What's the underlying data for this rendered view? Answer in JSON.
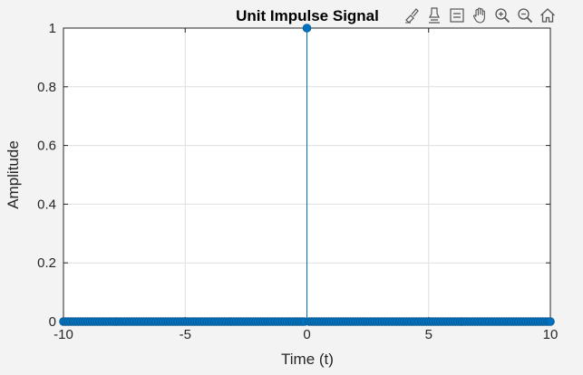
{
  "chart_data": {
    "type": "stem",
    "title": "Unit Impulse Signal",
    "xlabel": "Time (t)",
    "ylabel": "Amplitude",
    "xlim": [
      -10,
      10
    ],
    "ylim": [
      0,
      1
    ],
    "x_ticks": [
      -10,
      -5,
      0,
      5,
      10
    ],
    "x_tick_labels": [
      "-10",
      "-5",
      "0",
      "5",
      "10"
    ],
    "y_ticks": [
      0,
      0.2,
      0.4,
      0.6,
      0.8,
      1
    ],
    "y_tick_labels": [
      "0",
      "0.2",
      "0.4",
      "0.6",
      "0.8",
      "1"
    ],
    "grid": true,
    "series": [
      {
        "x": [
          -10,
          -9.9,
          -9.8,
          -9.7,
          -9.6,
          -9.5,
          -9.4,
          -9.3,
          -9.2,
          -9.1,
          -9,
          -8.9,
          -8.8,
          -8.7,
          -8.6,
          -8.5,
          -8.4,
          -8.3,
          -8.2,
          -8.1,
          -8,
          -7.9,
          -7.8,
          -7.7,
          -7.6,
          -7.5,
          -7.4,
          -7.3,
          -7.2,
          -7.1,
          -7,
          -6.9,
          -6.8,
          -6.7,
          -6.6,
          -6.5,
          -6.4,
          -6.3,
          -6.2,
          -6.1,
          -6,
          -5.9,
          -5.8,
          -5.7,
          -5.6,
          -5.5,
          -5.4,
          -5.3,
          -5.2,
          -5.1,
          -5,
          -4.9,
          -4.8,
          -4.7,
          -4.6,
          -4.5,
          -4.4,
          -4.3,
          -4.2,
          -4.1,
          -4,
          -3.9,
          -3.8,
          -3.7,
          -3.6,
          -3.5,
          -3.4,
          -3.3,
          -3.2,
          -3.1,
          -3,
          -2.9,
          -2.8,
          -2.7,
          -2.6,
          -2.5,
          -2.4,
          -2.3,
          -2.2,
          -2.1,
          -2,
          -1.9,
          -1.8,
          -1.7,
          -1.6,
          -1.5,
          -1.4,
          -1.3,
          -1.2,
          -1.1,
          -1,
          -0.9,
          -0.8,
          -0.7,
          -0.6,
          -0.5,
          -0.4,
          -0.3,
          -0.2,
          -0.1,
          0,
          0.1,
          0.2,
          0.3,
          0.4,
          0.5,
          0.6,
          0.7,
          0.8,
          0.9,
          1,
          1.1,
          1.2,
          1.3,
          1.4,
          1.5,
          1.6,
          1.7,
          1.8,
          1.9,
          2,
          2.1,
          2.2,
          2.3,
          2.4,
          2.5,
          2.6,
          2.7,
          2.8,
          2.9,
          3,
          3.1,
          3.2,
          3.3,
          3.4,
          3.5,
          3.6,
          3.7,
          3.8,
          3.9,
          4,
          4.1,
          4.2,
          4.3,
          4.4,
          4.5,
          4.6,
          4.7,
          4.8,
          4.9,
          5,
          5.1,
          5.2,
          5.3,
          5.4,
          5.5,
          5.6,
          5.7,
          5.8,
          5.9,
          6,
          6.1,
          6.2,
          6.3,
          6.4,
          6.5,
          6.6,
          6.7,
          6.8,
          6.9,
          7,
          7.1,
          7.2,
          7.3,
          7.4,
          7.5,
          7.6,
          7.7,
          7.8,
          7.9,
          8,
          8.1,
          8.2,
          8.3,
          8.4,
          8.5,
          8.6,
          8.7,
          8.8,
          8.9,
          9,
          9.1,
          9.2,
          9.3,
          9.4,
          9.5,
          9.6,
          9.7,
          9.8,
          9.9,
          10
        ],
        "y": [
          0,
          0,
          0,
          0,
          0,
          0,
          0,
          0,
          0,
          0,
          0,
          0,
          0,
          0,
          0,
          0,
          0,
          0,
          0,
          0,
          0,
          0,
          0,
          0,
          0,
          0,
          0,
          0,
          0,
          0,
          0,
          0,
          0,
          0,
          0,
          0,
          0,
          0,
          0,
          0,
          0,
          0,
          0,
          0,
          0,
          0,
          0,
          0,
          0,
          0,
          0,
          0,
          0,
          0,
          0,
          0,
          0,
          0,
          0,
          0,
          0,
          0,
          0,
          0,
          0,
          0,
          0,
          0,
          0,
          0,
          0,
          0,
          0,
          0,
          0,
          0,
          0,
          0,
          0,
          0,
          0,
          0,
          0,
          0,
          0,
          0,
          0,
          0,
          0,
          0,
          0,
          0,
          0,
          0,
          0,
          0,
          0,
          0,
          0,
          0,
          1,
          0,
          0,
          0,
          0,
          0,
          0,
          0,
          0,
          0,
          0,
          0,
          0,
          0,
          0,
          0,
          0,
          0,
          0,
          0,
          0,
          0,
          0,
          0,
          0,
          0,
          0,
          0,
          0,
          0,
          0,
          0,
          0,
          0,
          0,
          0,
          0,
          0,
          0,
          0,
          0,
          0,
          0,
          0,
          0,
          0,
          0,
          0,
          0,
          0,
          0,
          0,
          0,
          0,
          0,
          0,
          0,
          0,
          0,
          0,
          0,
          0,
          0,
          0,
          0,
          0,
          0,
          0,
          0,
          0,
          0,
          0,
          0,
          0,
          0,
          0,
          0,
          0,
          0,
          0,
          0,
          0,
          0,
          0,
          0,
          0,
          0,
          0,
          0,
          0,
          0,
          0,
          0,
          0,
          0,
          0,
          0,
          0,
          0,
          0,
          0
        ],
        "color": "#0072BD"
      }
    ]
  },
  "toolbar": {
    "buttons": [
      {
        "name": "brush-icon"
      },
      {
        "name": "data-tips-icon"
      },
      {
        "name": "legend-icon"
      },
      {
        "name": "pan-hand-icon"
      },
      {
        "name": "zoom-in-icon"
      },
      {
        "name": "zoom-out-icon"
      },
      {
        "name": "home-icon"
      }
    ]
  }
}
